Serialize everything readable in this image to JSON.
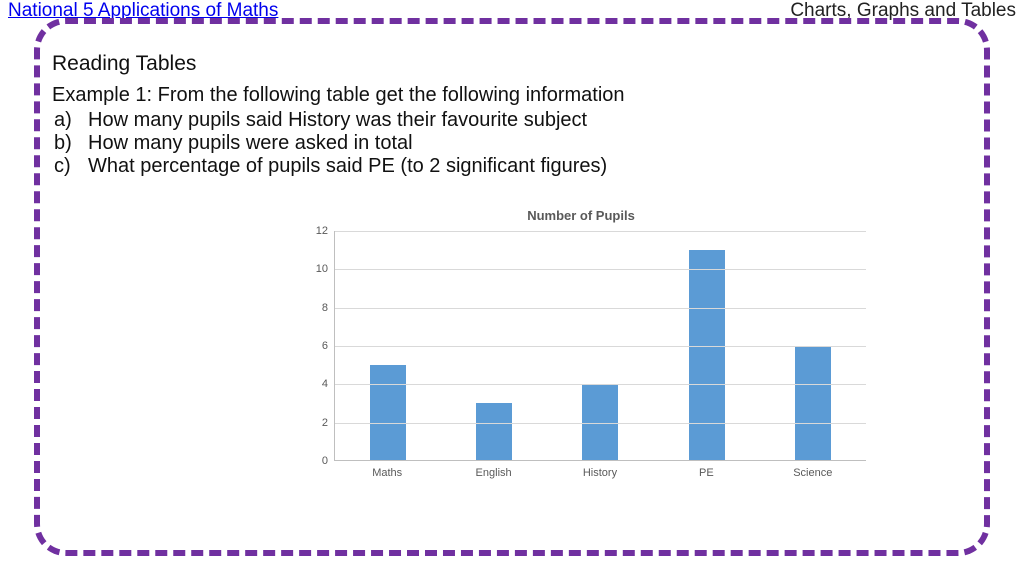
{
  "header": {
    "left": "National 5 Applications of Maths",
    "right": "Charts, Graphs and Tables"
  },
  "border_color": "#7030a0",
  "section_title": "Reading Tables",
  "example_intro": "Example 1: From the following table get the following information",
  "questions": [
    {
      "letter": "a)",
      "text": "How many pupils said History was their favourite subject"
    },
    {
      "letter": "b)",
      "text": "How many pupils were asked in total"
    },
    {
      "letter": "c)",
      "text": "What percentage of pupils said PE (to 2 significant figures)"
    }
  ],
  "chart": {
    "type": "bar",
    "title": "Number of Pupils",
    "categories": [
      "Maths",
      "English",
      "History",
      "PE",
      "Science"
    ],
    "values": [
      5,
      3,
      4,
      11,
      6
    ],
    "bar_color": "#5b9bd5",
    "ylim": [
      0,
      12
    ],
    "ytick_step": 2,
    "grid_color": "#d9d9d9",
    "axis_label_color": "#595959",
    "label_fontsize": 11,
    "title_fontsize": 13
  }
}
